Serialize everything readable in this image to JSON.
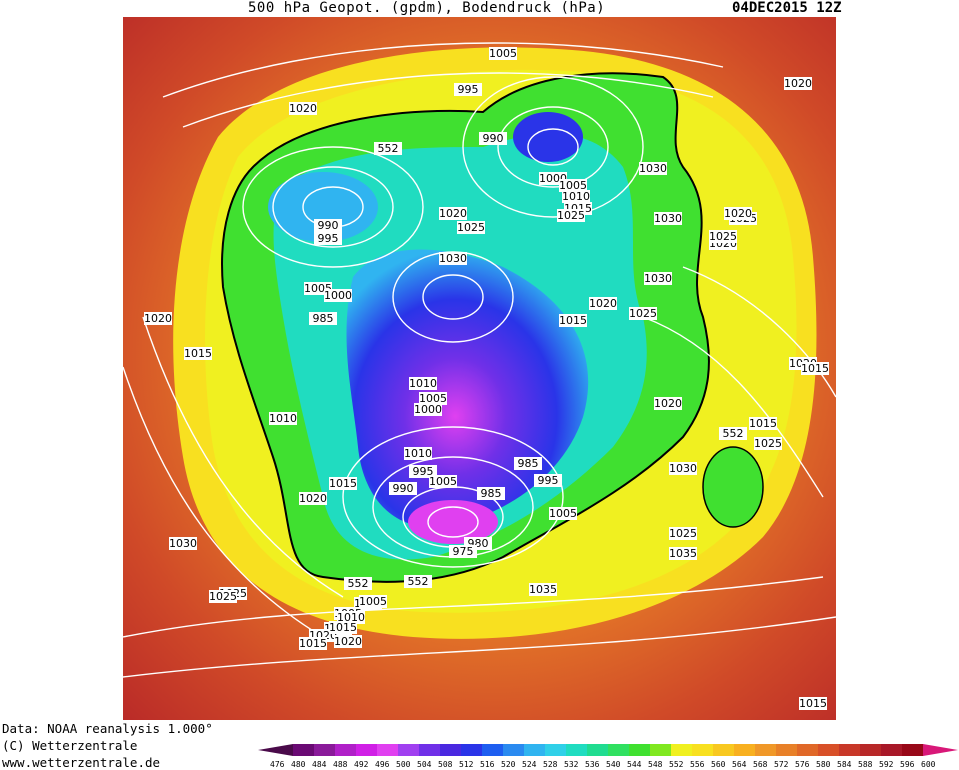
{
  "header": {
    "title": "500 hPa Geopot. (gpdm), Bodendruck (hPa)",
    "date": "04DEC2015 12Z"
  },
  "footer": {
    "data_source": "Data: NOAA reanalysis 1.000°",
    "copyright": "(C) Wetterzentrale",
    "url": "www.wetterzentrale.de"
  },
  "colorbar": {
    "labels": [
      "476",
      "480",
      "484",
      "488",
      "492",
      "496",
      "500",
      "504",
      "508",
      "512",
      "516",
      "520",
      "524",
      "528",
      "532",
      "536",
      "540",
      "544",
      "548",
      "552",
      "556",
      "560",
      "564",
      "568",
      "572",
      "576",
      "580",
      "584",
      "588",
      "592",
      "596",
      "600"
    ],
    "colors": [
      "#4a0a4a",
      "#6a0a74",
      "#8a1a9a",
      "#b020c8",
      "#d020e6",
      "#e040f0",
      "#a040f0",
      "#7030e8",
      "#4a28e0",
      "#2a34e8",
      "#1e5ef0",
      "#2a8af0",
      "#30b4f0",
      "#30d0e8",
      "#20dcc0",
      "#20dc90",
      "#30e060",
      "#40e030",
      "#80e820",
      "#f0f020",
      "#f8e020",
      "#f8c820",
      "#f8b020",
      "#f09828",
      "#e88028",
      "#e06828",
      "#d85028",
      "#c83828",
      "#b82828",
      "#a81828",
      "#980818",
      "#d81878"
    ]
  },
  "map": {
    "isobar_labels": [
      "1005",
      "995",
      "990",
      "1000",
      "1005",
      "1010",
      "1015",
      "1025",
      "1020",
      "1025",
      "1030",
      "1030",
      "1025",
      "1020",
      "1015",
      "1020",
      "1015",
      "1010",
      "1005",
      "1000",
      "985",
      "990",
      "995",
      "1020",
      "1030",
      "1025",
      "1020",
      "1020",
      "1015",
      "1010",
      "1005",
      "1000",
      "1010",
      "1020",
      "1025",
      "1030",
      "1015",
      "552",
      "552",
      "552",
      "552",
      "1010",
      "1005",
      "1000",
      "995",
      "1005",
      "985",
      "990",
      "985",
      "980",
      "975",
      "995",
      "1005",
      "1035",
      "1035",
      "1020",
      "1015",
      "1005",
      "1010",
      "1015",
      "1020",
      "1025",
      "1030",
      "1025",
      "1020",
      "1015",
      "1020",
      "1025",
      "1030",
      "1025",
      "1020",
      "1015"
    ],
    "contour_552_label": "552"
  }
}
